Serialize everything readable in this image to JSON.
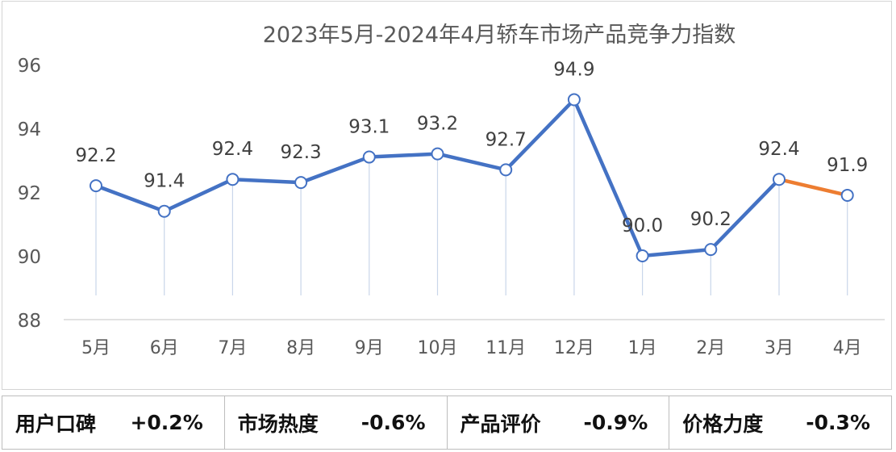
{
  "chart_data": {
    "type": "line",
    "title": "2023年5月-2024年4月轿车市场产品竞争力指数",
    "categories": [
      "5月",
      "6月",
      "7月",
      "8月",
      "9月",
      "10月",
      "11月",
      "12月",
      "1月",
      "2月",
      "3月",
      "4月"
    ],
    "series": [
      {
        "values": [
          92.2,
          91.4,
          92.4,
          92.3,
          93.1,
          93.2,
          92.7,
          94.9,
          90.0,
          90.2,
          92.4,
          91.9
        ]
      }
    ],
    "data_labels": [
      "92.2",
      "91.4",
      "92.4",
      "92.3",
      "93.1",
      "93.2",
      "92.7",
      "94.9",
      "90.0",
      "90.2",
      "92.4",
      "91.9"
    ],
    "ylim": [
      88,
      96
    ],
    "yticks": [
      96,
      94,
      92,
      90,
      88
    ],
    "xlabel": "",
    "ylabel": "",
    "colors": {
      "line": "#4472c4",
      "last_segment": "#ed7d31",
      "drop_line": "#c9d6ea"
    }
  },
  "metrics": [
    {
      "label": "用户口碑",
      "value": "+0.2%"
    },
    {
      "label": "市场热度",
      "value": "-0.6%"
    },
    {
      "label": "产品评价",
      "value": "-0.9%"
    },
    {
      "label": "价格力度",
      "value": "-0.3%"
    }
  ]
}
